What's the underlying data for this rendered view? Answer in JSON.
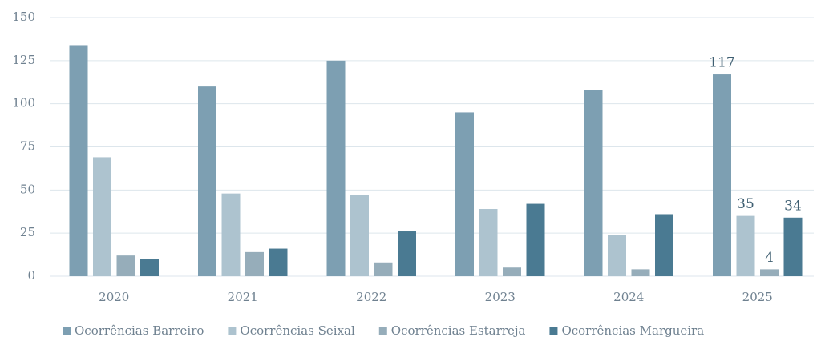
{
  "chart_data": {
    "type": "bar",
    "categories": [
      "2020",
      "2021",
      "2022",
      "2023",
      "2024",
      "2025"
    ],
    "series": [
      {
        "name": "Ocorrências Barreiro",
        "color": "#7d9fb2",
        "values": [
          134,
          110,
          125,
          95,
          108,
          117
        ],
        "value_labels": [
          null,
          null,
          null,
          null,
          null,
          "117"
        ]
      },
      {
        "name": "Ocorrências Seixal",
        "color": "#adc3cf",
        "values": [
          69,
          48,
          47,
          39,
          24,
          35
        ],
        "value_labels": [
          null,
          null,
          null,
          null,
          null,
          "35"
        ]
      },
      {
        "name": "Ocorrências Estarreja",
        "color": "#96adba",
        "values": [
          12,
          14,
          8,
          5,
          4,
          4
        ],
        "value_labels": [
          null,
          null,
          null,
          null,
          null,
          "4"
        ]
      },
      {
        "name": "Ocorrências Margueira",
        "color": "#4a7a92",
        "values": [
          10,
          16,
          26,
          42,
          36,
          34
        ],
        "value_labels": [
          null,
          null,
          null,
          null,
          null,
          "34"
        ]
      }
    ],
    "ylim": [
      0,
      150
    ],
    "yticks": [
      0,
      25,
      50,
      75,
      100,
      125,
      150
    ],
    "grid": true,
    "legend": "bottom"
  }
}
